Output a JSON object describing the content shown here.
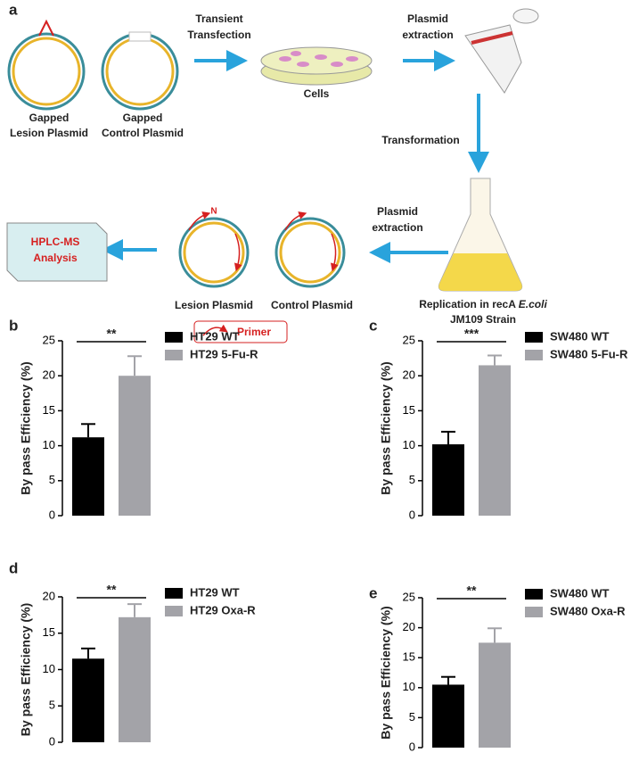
{
  "diagram": {
    "label": "a",
    "gapped_lesion": [
      "Gapped",
      "Lesion Plasmid"
    ],
    "gapped_control": [
      "Gapped",
      "Control Plasmid"
    ],
    "transfection": [
      "Transient",
      "Transfection"
    ],
    "cells": "Cells",
    "extraction_1": [
      "Plasmid",
      "extraction"
    ],
    "transformation": "Transformation",
    "replication": [
      "Replication in recA",
      "E.coli",
      "JM109 Strain"
    ],
    "extraction_2": [
      "Plasmid",
      "extraction"
    ],
    "lesion_plasmid": "Lesion Plasmid",
    "control_plasmid": "Control Plasmid",
    "lesion_mark": "N",
    "hplc": [
      "HPLC-MS",
      "Analysis"
    ],
    "primer": "Primer"
  },
  "chart_data": [
    {
      "type": "bar",
      "label": "b",
      "y_label": "By pass Efficiency (%)",
      "ylim": [
        0,
        25
      ],
      "yticks": [
        0,
        5,
        10,
        15,
        20,
        25
      ],
      "significance": "**",
      "series": [
        {
          "name": "HT29 WT",
          "color": "#000000",
          "values": [
            11.2
          ],
          "errors": [
            1.9
          ]
        },
        {
          "name": "HT29 5-Fu-R",
          "color": "#a3a3a8",
          "values": [
            20
          ],
          "errors": [
            2.8
          ]
        }
      ]
    },
    {
      "type": "bar",
      "label": "c",
      "y_label": "By pass Efficiency (%)",
      "ylim": [
        0,
        25
      ],
      "yticks": [
        0,
        5,
        10,
        15,
        20,
        25
      ],
      "significance": "***",
      "series": [
        {
          "name": "SW480 WT",
          "color": "#000000",
          "values": [
            10.2
          ],
          "errors": [
            1.8
          ]
        },
        {
          "name": "SW480 5-Fu-R",
          "color": "#a3a3a8",
          "values": [
            21.5
          ],
          "errors": [
            1.4
          ]
        }
      ]
    },
    {
      "type": "bar",
      "label": "d",
      "y_label": "By pass Efficiency (%)",
      "ylim": [
        0,
        20
      ],
      "yticks": [
        0,
        5,
        10,
        15,
        20
      ],
      "significance": "**",
      "series": [
        {
          "name": "HT29 WT",
          "color": "#000000",
          "values": [
            11.5
          ],
          "errors": [
            1.4
          ]
        },
        {
          "name": "HT29 Oxa-R",
          "color": "#a3a3a8",
          "values": [
            17.2
          ],
          "errors": [
            1.8
          ]
        }
      ]
    },
    {
      "type": "bar",
      "label": "e",
      "y_label": "By pass Efficiency (%)",
      "ylim": [
        0,
        25
      ],
      "yticks": [
        0,
        5,
        10,
        15,
        20,
        25
      ],
      "significance": "**",
      "series": [
        {
          "name": "SW480 WT",
          "color": "#000000",
          "values": [
            10.5
          ],
          "errors": [
            1.3
          ]
        },
        {
          "name": "SW480 Oxa-R",
          "color": "#a3a3a8",
          "values": [
            17.5
          ],
          "errors": [
            2.4
          ]
        }
      ]
    }
  ]
}
